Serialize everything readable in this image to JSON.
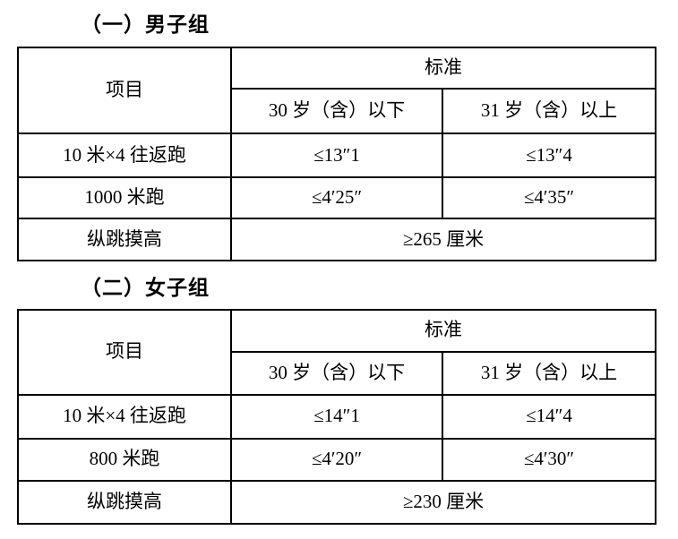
{
  "document": {
    "background_color": "#ffffff",
    "text_color": "#000000",
    "border_color": "#000000"
  },
  "sections": [
    {
      "heading": "（一）男子组",
      "table": {
        "item_header": "项目",
        "standard_header": "标准",
        "age_columns": [
          "30 岁（含）以下",
          "31 岁（含）以上"
        ],
        "rows": [
          {
            "item": "10 米×4 往返跑",
            "values": [
              "≤13″1",
              "≤13″4"
            ]
          },
          {
            "item": "1000 米跑",
            "values": [
              "≤4′25″",
              "≤4′35″"
            ]
          },
          {
            "item": "纵跳摸高",
            "combined_value": "≥265 厘米"
          }
        ]
      }
    },
    {
      "heading": "（二）女子组",
      "table": {
        "item_header": "项目",
        "standard_header": "标准",
        "age_columns": [
          "30 岁（含）以下",
          "31 岁（含）以上"
        ],
        "rows": [
          {
            "item": "10 米×4 往返跑",
            "values": [
              "≤14″1",
              "≤14″4"
            ]
          },
          {
            "item": "800 米跑",
            "values": [
              "≤4′20″",
              "≤4′30″"
            ]
          },
          {
            "item": "纵跳摸高",
            "combined_value": "≥230 厘米"
          }
        ]
      }
    }
  ]
}
